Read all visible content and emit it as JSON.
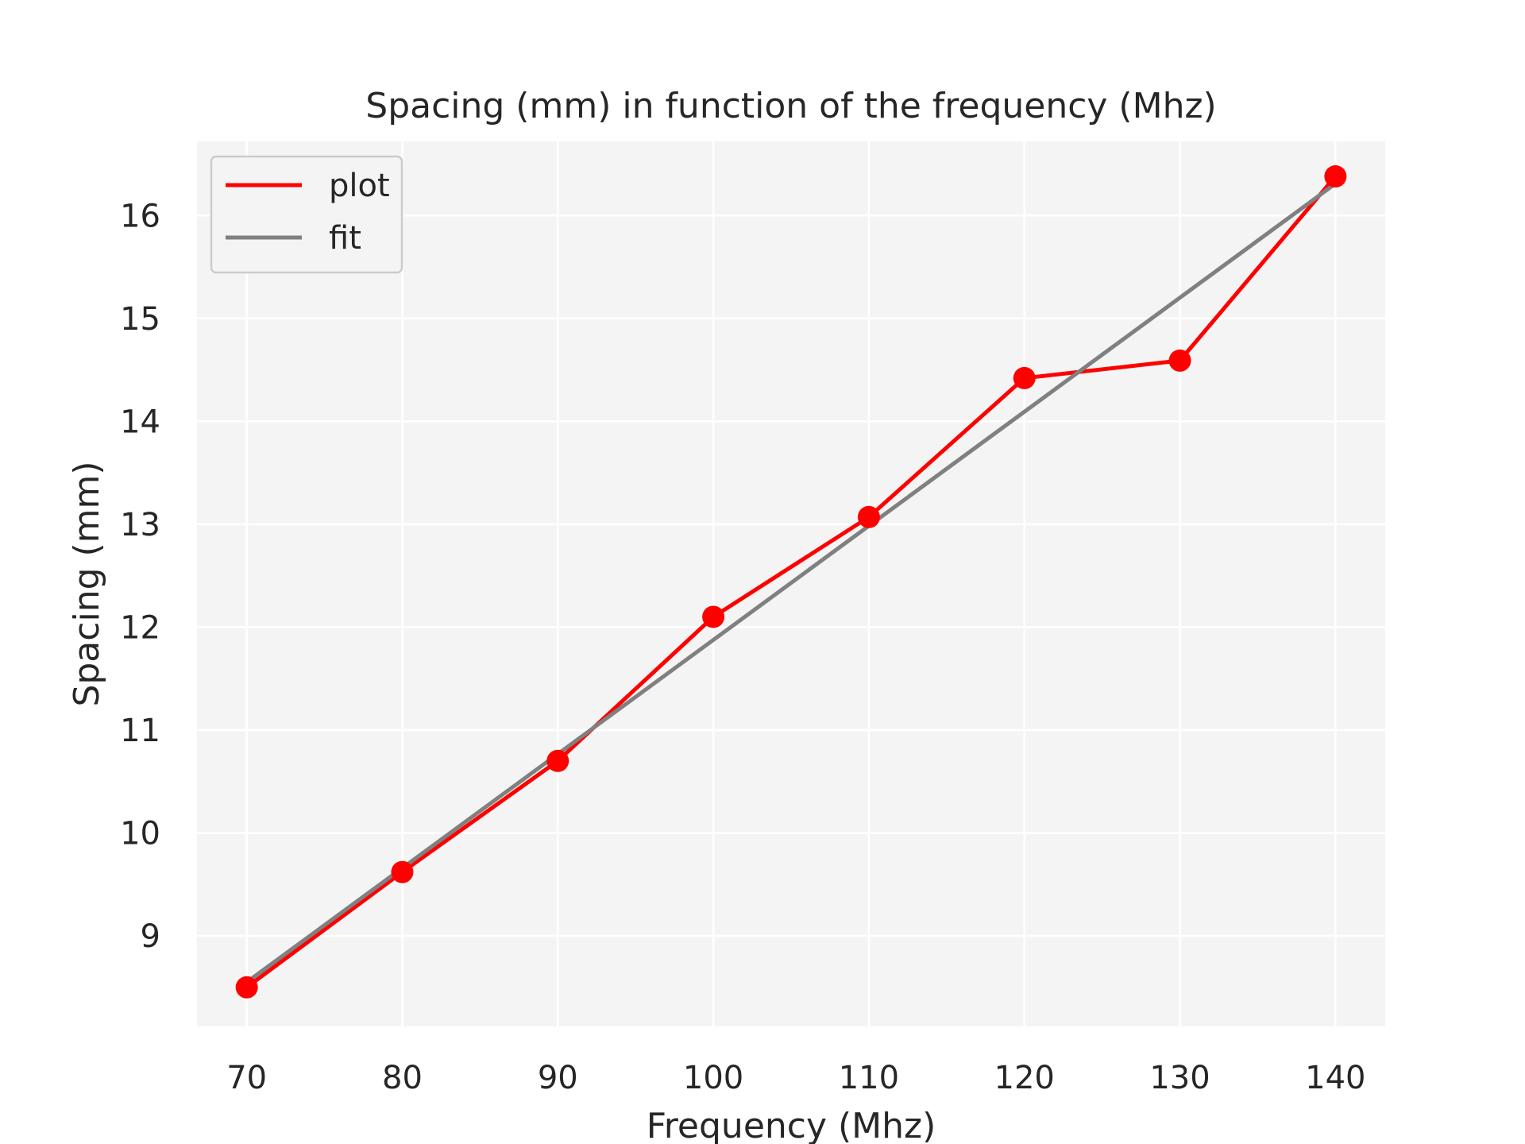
{
  "chart_data": {
    "type": "line",
    "title": "Spacing (mm) in function of the frequency (Mhz)",
    "xlabel": "Frequency (Mhz)",
    "ylabel": "Spacing (mm)",
    "xlim": [
      66.8,
      143.2
    ],
    "ylim": [
      8.12,
      16.72
    ],
    "xticks": [
      70,
      80,
      90,
      100,
      110,
      120,
      130,
      140
    ],
    "yticks": [
      9,
      10,
      11,
      12,
      13,
      14,
      15,
      16
    ],
    "grid": true,
    "legend_position": "top-left",
    "series": [
      {
        "name": "plot",
        "color": "#ff0000",
        "markers": true,
        "x": [
          70,
          80,
          90,
          100,
          110,
          120,
          130,
          140
        ],
        "y": [
          8.5,
          9.62,
          10.7,
          12.1,
          13.07,
          14.42,
          14.59,
          16.38
        ]
      },
      {
        "name": "fit",
        "color": "#808080",
        "markers": false,
        "x": [
          70,
          140
        ],
        "y": [
          8.55,
          16.31
        ]
      }
    ],
    "legend": [
      "plot",
      "fit"
    ]
  }
}
